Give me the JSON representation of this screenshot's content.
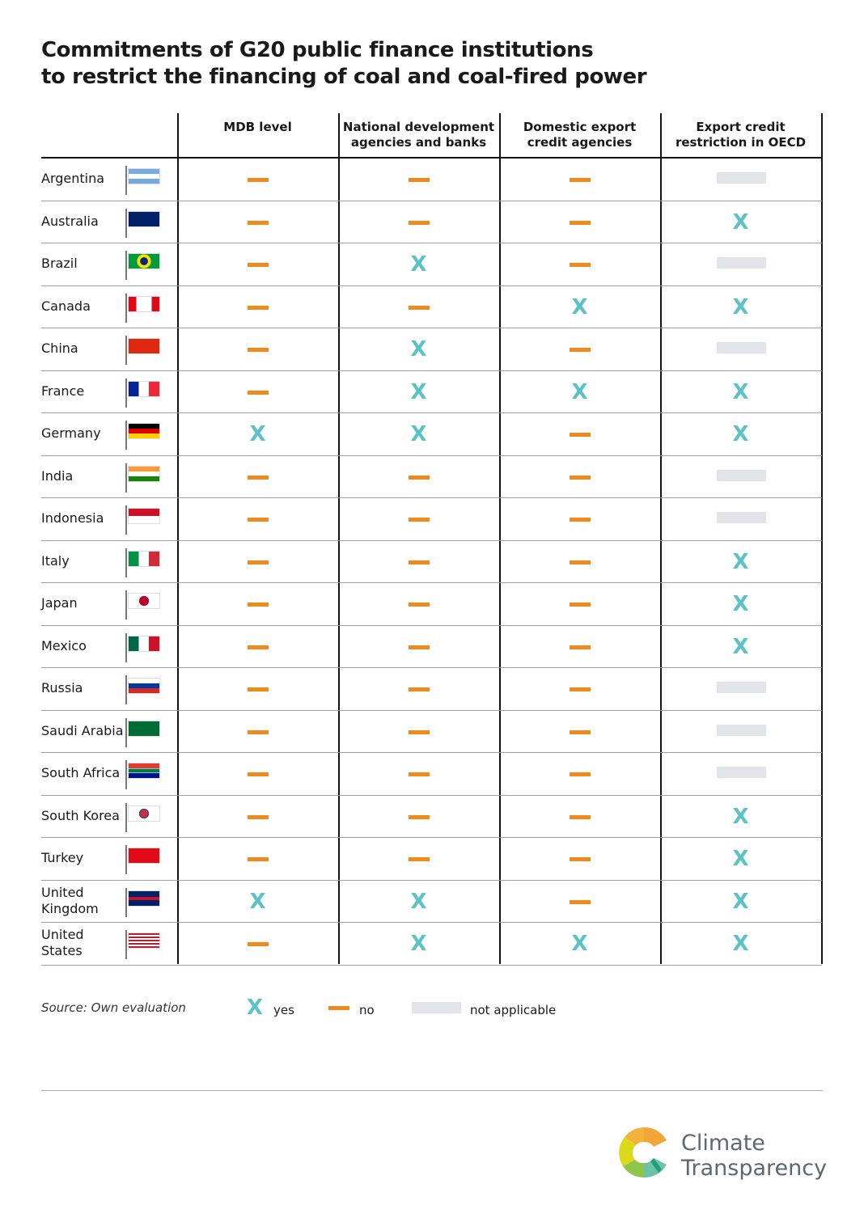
{
  "title": {
    "line1": "Commitments of G20 public finance institutions",
    "line2": "to restrict the financing of coal and coal-fired power"
  },
  "colors": {
    "yes": "#5bc2c6",
    "no": "#f08a1c",
    "not_applicable": "#e1e5e9"
  },
  "legend": {
    "source": "Source: Own evaluation",
    "yes_symbol": "X",
    "yes": "yes",
    "no": "no",
    "not_applicable": "not applicable"
  },
  "logo": {
    "line1": "Climate",
    "line2": "Transparency"
  },
  "chart_data": {
    "type": "table",
    "title": "Commitments of G20 public finance institutions to restrict the financing of coal and coal-fired power",
    "columns": [
      "MDB level",
      "National development agencies and banks",
      "Domestic export credit agencies",
      "Export credit restriction in OECD"
    ],
    "column_lines": [
      [
        "MDB level"
      ],
      [
        "National development",
        "agencies and banks"
      ],
      [
        "Domestic export",
        "credit agencies"
      ],
      [
        "Export credit",
        "restriction in OECD"
      ]
    ],
    "rows": [
      {
        "country": "Argentina",
        "lines": [
          "Argentina"
        ],
        "values": [
          "no",
          "no",
          "no",
          "na"
        ]
      },
      {
        "country": "Australia",
        "lines": [
          "Australia"
        ],
        "values": [
          "no",
          "no",
          "no",
          "yes"
        ]
      },
      {
        "country": "Brazil",
        "lines": [
          "Brazil"
        ],
        "values": [
          "no",
          "yes",
          "no",
          "na"
        ]
      },
      {
        "country": "Canada",
        "lines": [
          "Canada"
        ],
        "values": [
          "no",
          "no",
          "yes",
          "yes"
        ]
      },
      {
        "country": "China",
        "lines": [
          "China"
        ],
        "values": [
          "no",
          "yes",
          "no",
          "na"
        ]
      },
      {
        "country": "France",
        "lines": [
          "France"
        ],
        "values": [
          "no",
          "yes",
          "yes",
          "yes"
        ]
      },
      {
        "country": "Germany",
        "lines": [
          "Germany"
        ],
        "values": [
          "yes",
          "yes",
          "no",
          "yes"
        ]
      },
      {
        "country": "India",
        "lines": [
          "India"
        ],
        "values": [
          "no",
          "no",
          "no",
          "na"
        ]
      },
      {
        "country": "Indonesia",
        "lines": [
          "Indonesia"
        ],
        "values": [
          "no",
          "no",
          "no",
          "na"
        ]
      },
      {
        "country": "Italy",
        "lines": [
          "Italy"
        ],
        "values": [
          "no",
          "no",
          "no",
          "yes"
        ]
      },
      {
        "country": "Japan",
        "lines": [
          "Japan"
        ],
        "values": [
          "no",
          "no",
          "no",
          "yes"
        ]
      },
      {
        "country": "Mexico",
        "lines": [
          "Mexico"
        ],
        "values": [
          "no",
          "no",
          "no",
          "yes"
        ]
      },
      {
        "country": "Russia",
        "lines": [
          "Russia"
        ],
        "values": [
          "no",
          "no",
          "no",
          "na"
        ]
      },
      {
        "country": "Saudi Arabia",
        "lines": [
          "Saudi Arabia"
        ],
        "values": [
          "no",
          "no",
          "no",
          "na"
        ]
      },
      {
        "country": "South Africa",
        "lines": [
          "South Africa"
        ],
        "values": [
          "no",
          "no",
          "no",
          "na"
        ]
      },
      {
        "country": "South Korea",
        "lines": [
          "South Korea"
        ],
        "values": [
          "no",
          "no",
          "no",
          "yes"
        ]
      },
      {
        "country": "Turkey",
        "lines": [
          "Turkey"
        ],
        "values": [
          "no",
          "no",
          "no",
          "yes"
        ]
      },
      {
        "country": "United Kingdom",
        "lines": [
          "United",
          "Kingdom"
        ],
        "values": [
          "yes",
          "yes",
          "no",
          "yes"
        ]
      },
      {
        "country": "United States",
        "lines": [
          "United",
          "States"
        ],
        "values": [
          "no",
          "yes",
          "yes",
          "yes"
        ]
      }
    ]
  }
}
